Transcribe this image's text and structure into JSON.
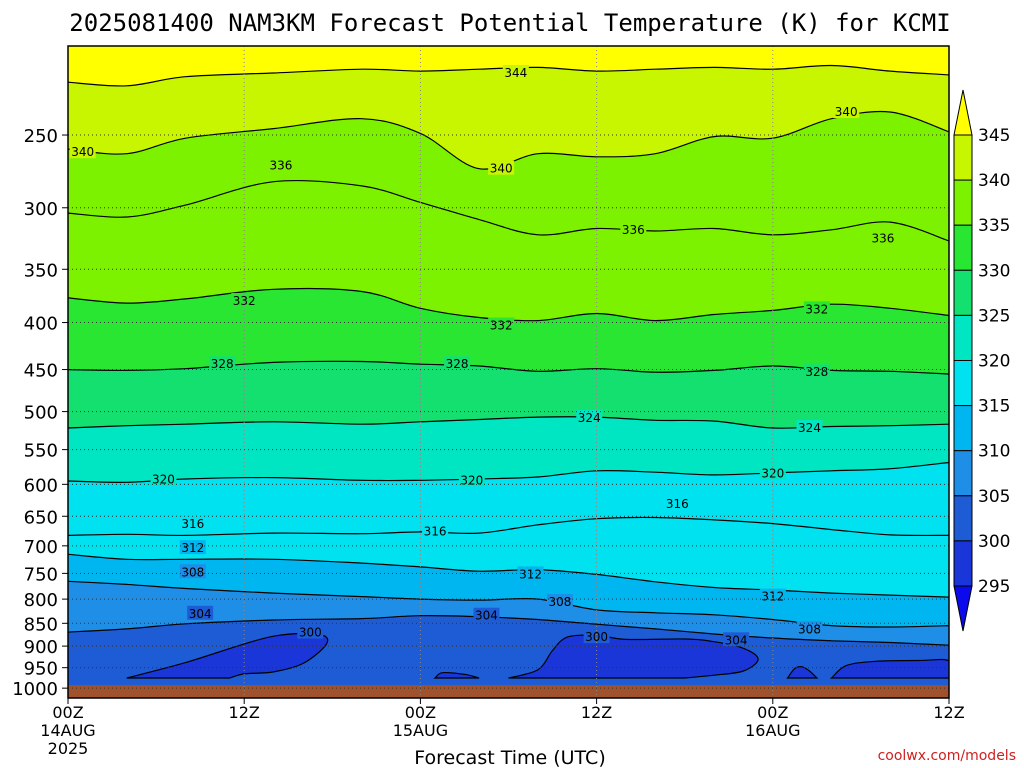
{
  "chart_data": {
    "type": "heatmap",
    "title": "2025081400 NAM3KM Forecast Potential Temperature (K) for KCMI",
    "xlabel": "Forecast Time (UTC)",
    "ylabel": "",
    "credit": "coolwx.com/models",
    "x_ticks": [
      {
        "hour": 0,
        "label": "00Z",
        "sub1": "14AUG",
        "sub2": "2025"
      },
      {
        "hour": 12,
        "label": "12Z",
        "sub1": "",
        "sub2": ""
      },
      {
        "hour": 24,
        "label": "00Z",
        "sub1": "15AUG",
        "sub2": ""
      },
      {
        "hour": 36,
        "label": "12Z",
        "sub1": "",
        "sub2": ""
      },
      {
        "hour": 48,
        "label": "00Z",
        "sub1": "16AUG",
        "sub2": ""
      },
      {
        "hour": 60,
        "label": "12Z",
        "sub1": "",
        "sub2": ""
      }
    ],
    "xlim": [
      0,
      60
    ],
    "y_ticks": [
      250,
      300,
      350,
      400,
      450,
      500,
      550,
      600,
      650,
      700,
      750,
      800,
      850,
      900,
      950,
      1000
    ],
    "ylim": [
      200,
      1025
    ],
    "y_scale": "log-pressure",
    "surface_pressure": 1000,
    "colorbar": {
      "levels": [
        295,
        300,
        305,
        310,
        315,
        320,
        325,
        330,
        335,
        340,
        345
      ],
      "colors": [
        "#0a0aec",
        "#1a36d8",
        "#1e5cd6",
        "#1e8ee6",
        "#00b6f0",
        "#00e2f0",
        "#00e6c2",
        "#14e070",
        "#28e632",
        "#7cf200",
        "#c8f500",
        "#ffff00"
      ]
    },
    "isotherms": [
      {
        "value": 344,
        "p": [
          [
            0,
            219
          ],
          [
            4,
            221
          ],
          [
            8,
            216
          ],
          [
            14,
            214
          ],
          [
            20,
            212
          ],
          [
            24,
            213
          ],
          [
            28,
            212
          ],
          [
            32,
            211
          ],
          [
            36,
            213
          ],
          [
            40,
            212
          ],
          [
            44,
            211
          ],
          [
            48,
            212
          ],
          [
            52,
            210
          ],
          [
            56,
            213
          ],
          [
            60,
            215
          ]
        ]
      },
      {
        "value": 340,
        "p": [
          [
            0,
            259
          ],
          [
            4,
            262
          ],
          [
            8,
            252
          ],
          [
            14,
            246
          ],
          [
            20,
            240
          ],
          [
            24,
            249
          ],
          [
            28,
            272
          ],
          [
            32,
            262
          ],
          [
            36,
            264
          ],
          [
            40,
            262
          ],
          [
            44,
            251
          ],
          [
            48,
            252
          ],
          [
            52,
            240
          ],
          [
            56,
            236
          ],
          [
            60,
            248
          ]
        ]
      },
      {
        "value": 336,
        "p": [
          [
            0,
            304
          ],
          [
            4,
            307
          ],
          [
            8,
            298
          ],
          [
            14,
            281
          ],
          [
            20,
            284
          ],
          [
            24,
            296
          ],
          [
            28,
            309
          ],
          [
            32,
            321
          ],
          [
            36,
            316
          ],
          [
            40,
            318
          ],
          [
            44,
            316
          ],
          [
            48,
            321
          ],
          [
            52,
            317
          ],
          [
            56,
            311
          ],
          [
            60,
            326
          ]
        ]
      },
      {
        "value": 332,
        "p": [
          [
            0,
            376
          ],
          [
            4,
            381
          ],
          [
            8,
            377
          ],
          [
            14,
            368
          ],
          [
            20,
            370
          ],
          [
            24,
            386
          ],
          [
            28,
            395
          ],
          [
            32,
            398
          ],
          [
            36,
            391
          ],
          [
            40,
            398
          ],
          [
            44,
            392
          ],
          [
            48,
            388
          ],
          [
            52,
            382
          ],
          [
            56,
            386
          ],
          [
            60,
            393
          ]
        ]
      },
      {
        "value": 328,
        "p": [
          [
            0,
            450
          ],
          [
            4,
            451
          ],
          [
            8,
            449
          ],
          [
            14,
            442
          ],
          [
            20,
            441
          ],
          [
            24,
            444
          ],
          [
            28,
            446
          ],
          [
            32,
            452
          ],
          [
            36,
            449
          ],
          [
            40,
            453
          ],
          [
            44,
            451
          ],
          [
            48,
            446
          ],
          [
            52,
            451
          ],
          [
            56,
            452
          ],
          [
            60,
            455
          ]
        ]
      },
      {
        "value": 324,
        "p": [
          [
            0,
            521
          ],
          [
            4,
            518
          ],
          [
            8,
            516
          ],
          [
            14,
            513
          ],
          [
            20,
            516
          ],
          [
            24,
            513
          ],
          [
            28,
            510
          ],
          [
            32,
            507
          ],
          [
            36,
            507
          ],
          [
            40,
            511
          ],
          [
            44,
            512
          ],
          [
            48,
            521
          ],
          [
            52,
            519
          ],
          [
            56,
            518
          ],
          [
            60,
            516
          ]
        ]
      },
      {
        "value": 320,
        "p": [
          [
            0,
            595
          ],
          [
            4,
            597
          ],
          [
            8,
            592
          ],
          [
            14,
            590
          ],
          [
            20,
            594
          ],
          [
            24,
            594
          ],
          [
            28,
            592
          ],
          [
            32,
            589
          ],
          [
            36,
            580
          ],
          [
            40,
            582
          ],
          [
            44,
            586
          ],
          [
            48,
            583
          ],
          [
            52,
            580
          ],
          [
            56,
            577
          ],
          [
            60,
            568
          ]
        ]
      },
      {
        "value": 316,
        "p": [
          [
            0,
            682
          ],
          [
            4,
            680
          ],
          [
            8,
            682
          ],
          [
            14,
            678
          ],
          [
            20,
            679
          ],
          [
            24,
            676
          ],
          [
            28,
            678
          ],
          [
            32,
            664
          ],
          [
            36,
            654
          ],
          [
            40,
            652
          ],
          [
            44,
            656
          ],
          [
            48,
            662
          ],
          [
            52,
            672
          ],
          [
            56,
            681
          ],
          [
            60,
            682
          ]
        ]
      },
      {
        "value": 312,
        "p": [
          [
            0,
            715
          ],
          [
            4,
            724
          ],
          [
            8,
            724
          ],
          [
            14,
            724
          ],
          [
            20,
            731
          ],
          [
            24,
            738
          ],
          [
            28,
            746
          ],
          [
            32,
            743
          ],
          [
            36,
            752
          ],
          [
            40,
            766
          ],
          [
            44,
            777
          ],
          [
            48,
            782
          ],
          [
            52,
            788
          ],
          [
            56,
            792
          ],
          [
            60,
            796
          ]
        ]
      },
      {
        "value": 308,
        "p": [
          [
            0,
            765
          ],
          [
            4,
            771
          ],
          [
            8,
            779
          ],
          [
            14,
            788
          ],
          [
            20,
            795
          ],
          [
            24,
            800
          ],
          [
            28,
            802
          ],
          [
            32,
            800
          ],
          [
            36,
            822
          ],
          [
            40,
            828
          ],
          [
            44,
            832
          ],
          [
            48,
            842
          ],
          [
            52,
            855
          ],
          [
            56,
            858
          ],
          [
            60,
            855
          ]
        ]
      },
      {
        "value": 304,
        "p": [
          [
            0,
            869
          ],
          [
            4,
            862
          ],
          [
            8,
            851
          ],
          [
            14,
            843
          ],
          [
            20,
            840
          ],
          [
            24,
            834
          ],
          [
            28,
            836
          ],
          [
            32,
            842
          ],
          [
            36,
            852
          ],
          [
            40,
            862
          ],
          [
            44,
            873
          ],
          [
            48,
            882
          ],
          [
            52,
            888
          ],
          [
            56,
            892
          ],
          [
            60,
            898
          ]
        ]
      }
    ],
    "contour_labels": [
      {
        "text": "344",
        "hour": 30.5,
        "p": 214
      },
      {
        "text": "340",
        "hour": 53.0,
        "p": 236
      },
      {
        "text": "340",
        "hour": 1.0,
        "p": 261
      },
      {
        "text": "336",
        "hour": 14.5,
        "p": 270
      },
      {
        "text": "340",
        "hour": 29.5,
        "p": 272
      },
      {
        "text": "336",
        "hour": 38.5,
        "p": 317
      },
      {
        "text": "336",
        "hour": 55.5,
        "p": 324
      },
      {
        "text": "332",
        "hour": 12.0,
        "p": 379
      },
      {
        "text": "332",
        "hour": 29.5,
        "p": 403
      },
      {
        "text": "332",
        "hour": 51.0,
        "p": 387
      },
      {
        "text": "328",
        "hour": 10.5,
        "p": 444
      },
      {
        "text": "328",
        "hour": 26.5,
        "p": 444
      },
      {
        "text": "328",
        "hour": 51.0,
        "p": 453
      },
      {
        "text": "324",
        "hour": 35.5,
        "p": 508
      },
      {
        "text": "324",
        "hour": 50.5,
        "p": 521
      },
      {
        "text": "320",
        "hour": 6.5,
        "p": 593
      },
      {
        "text": "320",
        "hour": 27.5,
        "p": 594
      },
      {
        "text": "320",
        "hour": 48.0,
        "p": 584
      },
      {
        "text": "316",
        "hour": 8.5,
        "p": 663
      },
      {
        "text": "316",
        "hour": 25.0,
        "p": 675
      },
      {
        "text": "316",
        "hour": 41.5,
        "p": 630
      },
      {
        "text": "312",
        "hour": 8.5,
        "p": 704
      },
      {
        "text": "312",
        "hour": 31.5,
        "p": 752
      },
      {
        "text": "312",
        "hour": 48.0,
        "p": 795
      },
      {
        "text": "308",
        "hour": 8.5,
        "p": 748
      },
      {
        "text": "308",
        "hour": 33.5,
        "p": 806
      },
      {
        "text": "308",
        "hour": 50.5,
        "p": 863
      },
      {
        "text": "304",
        "hour": 9.0,
        "p": 830
      },
      {
        "text": "304",
        "hour": 28.5,
        "p": 834
      },
      {
        "text": "304",
        "hour": 45.5,
        "p": 887
      },
      {
        "text": "300",
        "hour": 16.5,
        "p": 870
      },
      {
        "text": "300",
        "hour": 36.0,
        "p": 880
      }
    ],
    "cold_pockets": [
      {
        "value": 300,
        "p": [
          [
            4,
            975
          ],
          [
            8,
            938
          ],
          [
            12,
            895
          ],
          [
            14,
            878
          ],
          [
            16,
            872
          ],
          [
            17.5,
            878
          ],
          [
            17.5,
            900
          ],
          [
            16,
            940
          ],
          [
            14,
            960
          ],
          [
            12,
            965
          ],
          [
            11,
            975
          ]
        ]
      },
      {
        "value": 300,
        "p": [
          [
            25,
            975
          ],
          [
            25.5,
            962
          ],
          [
            27,
            966
          ],
          [
            28,
            975
          ]
        ]
      },
      {
        "value": 300,
        "p": [
          [
            30,
            975
          ],
          [
            32,
            955
          ],
          [
            33,
            910
          ],
          [
            34,
            880
          ],
          [
            36,
            876
          ],
          [
            38,
            885
          ],
          [
            42,
            884
          ],
          [
            44,
            890
          ],
          [
            46,
            905
          ],
          [
            47,
            930
          ],
          [
            46,
            958
          ],
          [
            44,
            968
          ],
          [
            42,
            975
          ]
        ]
      },
      {
        "value": 300,
        "p": [
          [
            49,
            975
          ],
          [
            49.5,
            952
          ],
          [
            50,
            948
          ],
          [
            50.5,
            958
          ],
          [
            51,
            975
          ]
        ]
      },
      {
        "value": 300,
        "p": [
          [
            52,
            975
          ],
          [
            53,
            945
          ],
          [
            55,
            935
          ],
          [
            58,
            933
          ],
          [
            60,
            934
          ],
          [
            60,
            975
          ]
        ]
      }
    ]
  }
}
